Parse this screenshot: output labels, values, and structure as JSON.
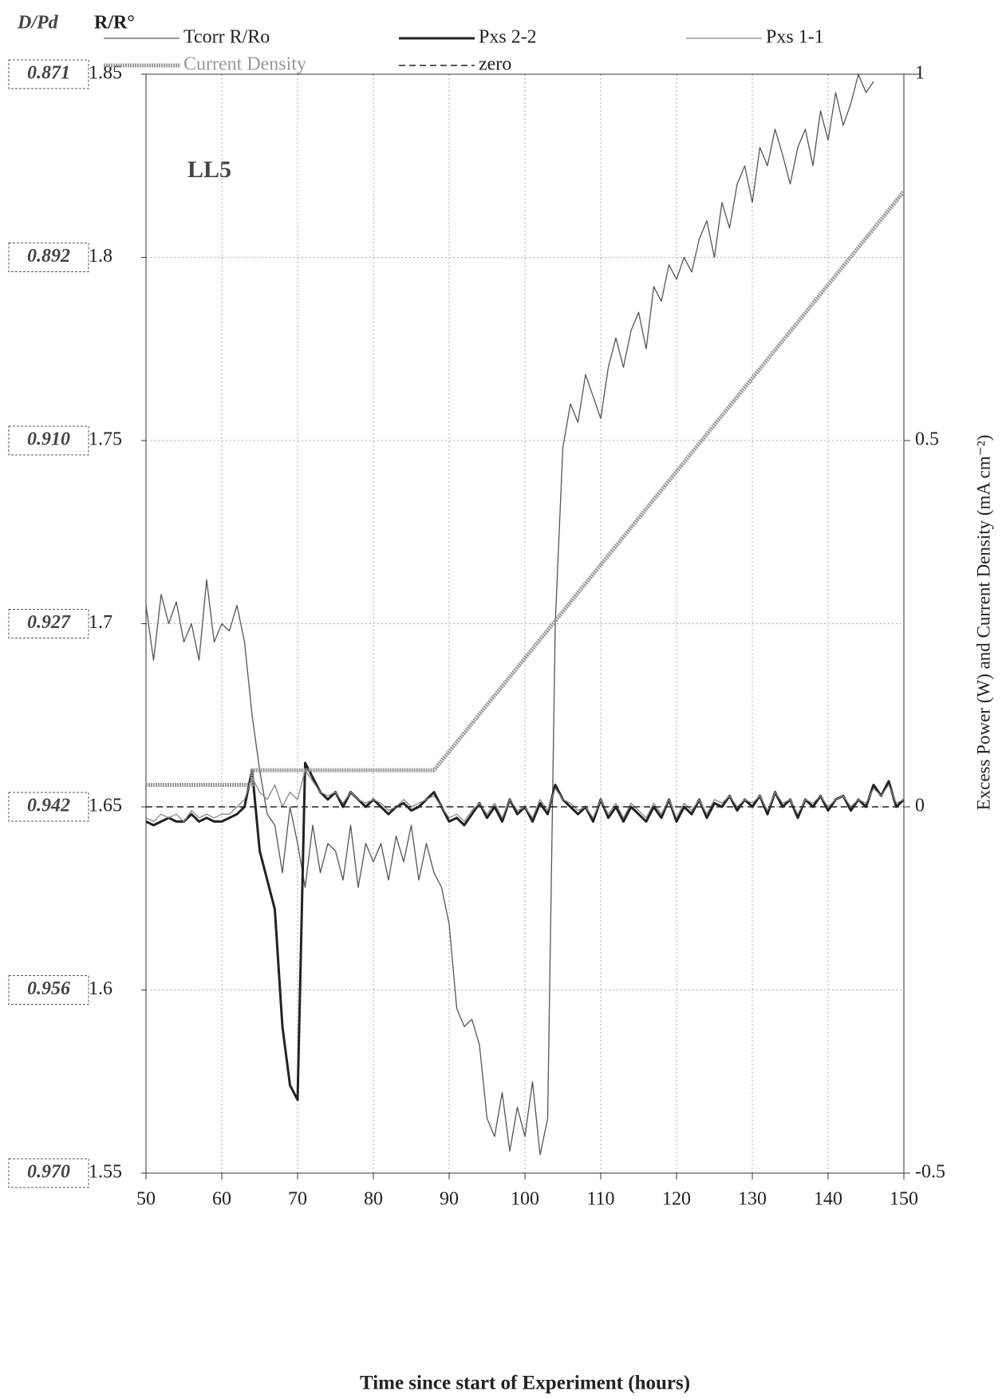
{
  "chart_data": {
    "type": "line",
    "annotation": "LL5",
    "xlabel": "Time since start of Experiment (hours)",
    "ylabel": "R/R°",
    "y3label": "D/Pd",
    "y2label": "Excess Power (W) and Current Density (mA cm⁻²)",
    "xlim": [
      50,
      150
    ],
    "xticks": [
      50,
      60,
      70,
      80,
      90,
      100,
      110,
      120,
      130,
      140,
      150
    ],
    "ylim": [
      1.55,
      1.85
    ],
    "yticks": [
      1.55,
      1.6,
      1.65,
      1.7,
      1.75,
      1.8,
      1.85
    ],
    "dpd_labels": [
      "0.970",
      "0.956",
      "0.942",
      "0.927",
      "0.910",
      "0.892",
      "0.871"
    ],
    "y2lim": [
      -0.5,
      1
    ],
    "y2ticks": [
      -0.5,
      0,
      0.5,
      1
    ],
    "grid": true,
    "legend": "top",
    "series": [
      {
        "name": "Tcorr R/Ro",
        "color": "#555555",
        "line_style": "thin",
        "x": [
          50,
          51,
          52,
          53,
          54,
          55,
          56,
          57,
          58,
          59,
          60,
          61,
          62,
          63,
          64,
          65,
          66,
          67,
          68,
          69,
          70,
          71,
          72,
          73,
          74,
          75,
          76,
          77,
          78,
          79,
          80,
          81,
          82,
          83,
          84,
          85,
          86,
          87,
          88,
          89,
          90,
          91,
          92,
          93,
          94,
          95,
          96,
          97,
          98,
          99,
          100,
          101,
          102,
          103,
          104,
          105,
          106,
          107,
          108,
          109,
          110,
          111,
          112,
          113,
          114,
          115,
          116,
          117,
          118,
          119,
          120,
          121,
          122,
          123,
          124,
          125,
          126,
          127,
          128,
          129,
          130,
          131,
          132,
          133,
          134,
          135,
          136,
          137,
          138,
          139,
          140,
          141,
          142,
          143,
          144,
          145,
          146
        ],
        "values": [
          1.705,
          1.69,
          1.708,
          1.7,
          1.706,
          1.695,
          1.7,
          1.69,
          1.712,
          1.695,
          1.7,
          1.698,
          1.705,
          1.695,
          1.675,
          1.66,
          1.648,
          1.645,
          1.632,
          1.65,
          1.64,
          1.628,
          1.645,
          1.632,
          1.64,
          1.638,
          1.63,
          1.645,
          1.628,
          1.64,
          1.635,
          1.64,
          1.63,
          1.642,
          1.635,
          1.645,
          1.63,
          1.64,
          1.632,
          1.628,
          1.618,
          1.595,
          1.59,
          1.592,
          1.585,
          1.565,
          1.56,
          1.572,
          1.556,
          1.568,
          1.56,
          1.575,
          1.555,
          1.565,
          1.7,
          1.748,
          1.76,
          1.755,
          1.768,
          1.762,
          1.756,
          1.77,
          1.778,
          1.77,
          1.78,
          1.785,
          1.775,
          1.792,
          1.788,
          1.798,
          1.794,
          1.8,
          1.796,
          1.805,
          1.81,
          1.8,
          1.815,
          1.808,
          1.82,
          1.825,
          1.815,
          1.83,
          1.825,
          1.835,
          1.828,
          1.82,
          1.83,
          1.835,
          1.825,
          1.84,
          1.832,
          1.845,
          1.836,
          1.842,
          1.85,
          1.845,
          1.848
        ]
      },
      {
        "name": "Pxs 2-2",
        "color": "#222222",
        "line_style": "thick",
        "axis": "y2",
        "x": [
          50,
          51,
          52,
          53,
          54,
          55,
          56,
          57,
          58,
          59,
          60,
          61,
          62,
          63,
          64,
          65,
          66,
          67,
          68,
          69,
          70,
          71,
          72,
          73,
          74,
          75,
          76,
          77,
          78,
          79,
          80,
          81,
          82,
          83,
          84,
          85,
          86,
          87,
          88,
          89,
          90,
          91,
          92,
          93,
          94,
          95,
          96,
          97,
          98,
          99,
          100,
          101,
          102,
          103,
          104,
          105,
          106,
          107,
          108,
          109,
          110,
          111,
          112,
          113,
          114,
          115,
          116,
          117,
          118,
          119,
          120,
          121,
          122,
          123,
          124,
          125,
          126,
          127,
          128,
          129,
          130,
          131,
          132,
          133,
          134,
          135,
          136,
          137,
          138,
          139,
          140,
          141,
          142,
          143,
          144,
          145,
          146,
          147,
          148,
          149,
          150
        ],
        "values": [
          -0.02,
          -0.025,
          -0.02,
          -0.015,
          -0.02,
          -0.02,
          -0.01,
          -0.02,
          -0.015,
          -0.02,
          -0.02,
          -0.015,
          -0.01,
          0.0,
          0.05,
          -0.06,
          -0.1,
          -0.14,
          -0.3,
          -0.38,
          -0.4,
          0.06,
          0.04,
          0.02,
          0.01,
          0.02,
          0.0,
          0.02,
          0.01,
          0.0,
          0.01,
          0.0,
          -0.01,
          0.0,
          0.005,
          -0.005,
          0.0,
          0.01,
          0.02,
          0.0,
          -0.02,
          -0.015,
          -0.025,
          -0.01,
          0.005,
          -0.015,
          0.0,
          -0.02,
          0.01,
          -0.01,
          0.0,
          -0.02,
          0.005,
          -0.01,
          0.03,
          0.01,
          0.0,
          -0.01,
          0.0,
          -0.02,
          0.01,
          -0.015,
          0.0,
          -0.02,
          0.0,
          -0.01,
          -0.02,
          0.0,
          -0.015,
          0.01,
          -0.02,
          0.0,
          -0.01,
          0.01,
          -0.015,
          0.005,
          0.0,
          0.015,
          -0.005,
          0.01,
          0.0,
          0.015,
          -0.01,
          0.02,
          0.0,
          0.01,
          -0.015,
          0.01,
          0.0,
          0.015,
          -0.005,
          0.01,
          0.015,
          -0.005,
          0.01,
          0.0,
          0.03,
          0.015,
          0.035,
          0.0,
          0.01
        ]
      },
      {
        "name": "Pxs 1-1",
        "color": "#888888",
        "line_style": "thin",
        "axis": "y2",
        "x": [
          50,
          51,
          52,
          53,
          54,
          55,
          56,
          57,
          58,
          59,
          60,
          61,
          62,
          63,
          64,
          65,
          66,
          67,
          68,
          69,
          70,
          71,
          72,
          73,
          74,
          75,
          76,
          77,
          78,
          79,
          80,
          81,
          82,
          83,
          84,
          85,
          86,
          87,
          88,
          89,
          90,
          91,
          92,
          93,
          94,
          95,
          96,
          97,
          98,
          99,
          100,
          101,
          102,
          103,
          104,
          105,
          106,
          107,
          108,
          109,
          110,
          111,
          112,
          113,
          114,
          115,
          116,
          117,
          118,
          119,
          120,
          121,
          122,
          123,
          124,
          125,
          126,
          127,
          128,
          129,
          130,
          131,
          132,
          133,
          134,
          135,
          136,
          137,
          138,
          139,
          140,
          141,
          142,
          143,
          144,
          145,
          146,
          147,
          148,
          149,
          150
        ],
        "values": [
          -0.015,
          -0.02,
          -0.01,
          -0.015,
          -0.01,
          -0.02,
          -0.005,
          -0.015,
          -0.01,
          -0.015,
          -0.01,
          -0.01,
          0.0,
          0.01,
          0.04,
          0.02,
          0.01,
          0.03,
          0.0,
          0.02,
          0.01,
          0.05,
          0.035,
          0.02,
          0.015,
          0.02,
          0.005,
          0.02,
          0.01,
          0.005,
          0.01,
          0.005,
          -0.005,
          0.0,
          0.01,
          0.0,
          0.005,
          0.01,
          0.015,
          0.0,
          -0.015,
          -0.01,
          -0.02,
          -0.005,
          0.005,
          -0.01,
          0.005,
          -0.015,
          0.01,
          -0.005,
          0.0,
          -0.015,
          0.01,
          -0.005,
          0.025,
          0.01,
          0.005,
          -0.005,
          0.0,
          -0.015,
          0.01,
          -0.01,
          0.005,
          -0.015,
          0.005,
          -0.005,
          -0.015,
          0.005,
          -0.01,
          0.01,
          -0.015,
          0.005,
          -0.005,
          0.01,
          -0.01,
          0.01,
          0.005,
          0.015,
          0.0,
          0.01,
          0.005,
          0.015,
          -0.005,
          0.02,
          0.005,
          0.01,
          -0.01,
          0.01,
          0.005,
          0.015,
          0.0,
          0.01,
          0.015,
          0.0,
          0.01,
          0.005,
          0.025,
          0.015,
          0.03,
          0.005,
          0.01
        ]
      },
      {
        "name": "Current Density",
        "color": "#999999",
        "line_style": "double",
        "axis": "y2",
        "x": [
          50,
          64,
          64,
          88,
          150
        ],
        "values": [
          0.03,
          0.03,
          0.05,
          0.05,
          0.84
        ]
      },
      {
        "name": "zero",
        "color": "#222222",
        "line_style": "dashed",
        "axis": "y2",
        "x": [
          50,
          150
        ],
        "values": [
          0,
          0
        ]
      }
    ]
  }
}
